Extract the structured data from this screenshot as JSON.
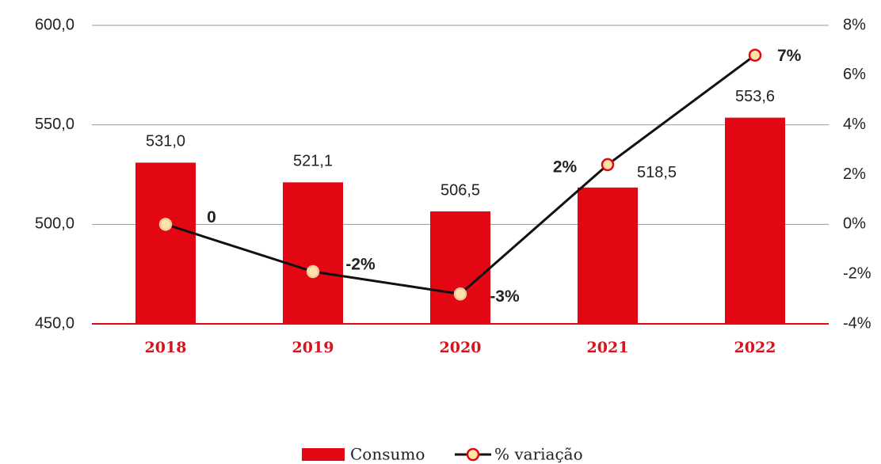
{
  "chart_data": {
    "type": "bar_line",
    "categories": [
      "2018",
      "2019",
      "2020",
      "2021",
      "2022"
    ],
    "series": [
      {
        "name": "Consumo",
        "color": "#e30613",
        "type": "bar",
        "values": [
          531.0,
          521.1,
          506.5,
          518.5,
          553.6
        ],
        "value_labels": [
          "531,0",
          "521,1",
          "506,5",
          "518,5",
          "553,6"
        ]
      },
      {
        "name": "% variação",
        "color": "#111111",
        "type": "line",
        "axis": "y2",
        "marker_color": "#fde3a7",
        "values": [
          0,
          -1.9,
          -2.8,
          2.4,
          6.8
        ],
        "value_labels": [
          "0",
          "-2%",
          "-3%",
          "2%",
          "7%"
        ]
      }
    ],
    "ylim": [
      450,
      600
    ],
    "yticks": [
      {
        "value": 450,
        "label": "450,0"
      },
      {
        "value": 500,
        "label": "500,0"
      },
      {
        "value": 550,
        "label": "550,0"
      },
      {
        "value": 600,
        "label": "600,0"
      }
    ],
    "y2lim": [
      -4,
      8
    ],
    "y2ticks": [
      {
        "value": -4,
        "label": "-4%"
      },
      {
        "value": -2,
        "label": "-2%"
      },
      {
        "value": 0,
        "label": "0%"
      },
      {
        "value": 2,
        "label": "2%"
      },
      {
        "value": 4,
        "label": "4%"
      },
      {
        "value": 6,
        "label": "6%"
      },
      {
        "value": 8,
        "label": "8%"
      }
    ],
    "grid": true,
    "legend": "bottom"
  }
}
